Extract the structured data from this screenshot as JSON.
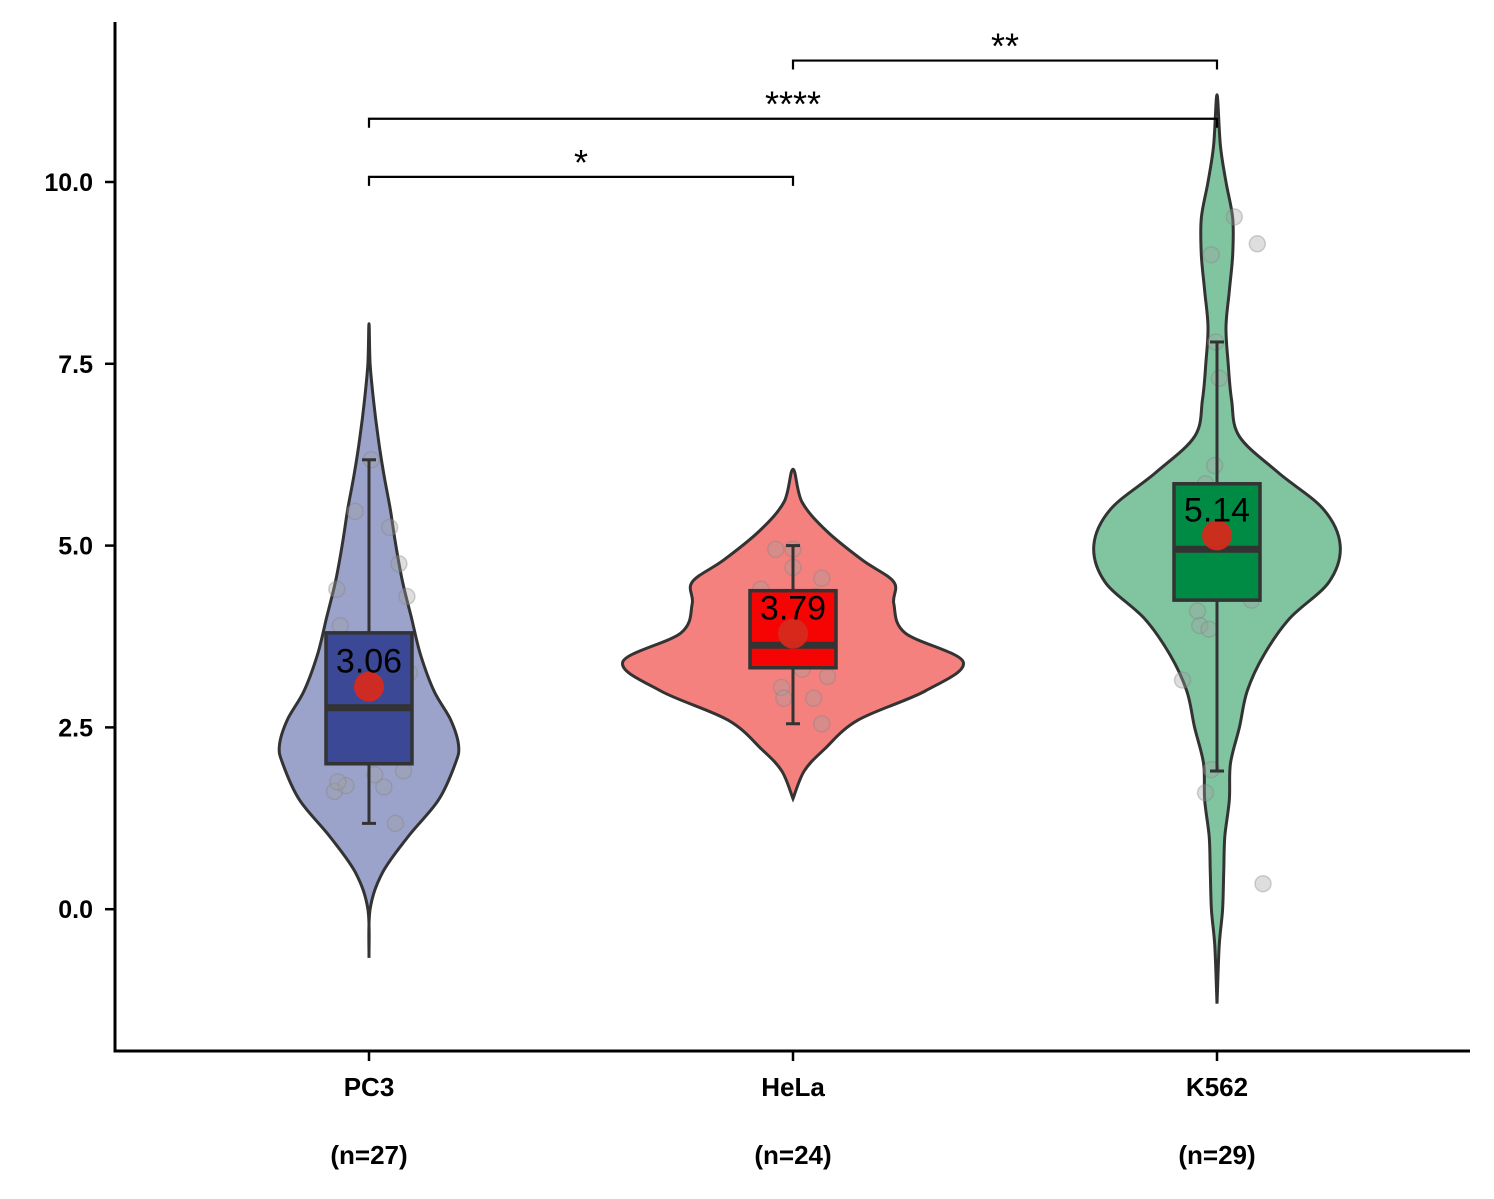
{
  "chart_data": {
    "type": "violin",
    "ylim": [
      -1.95,
      12.2
    ],
    "yticks": [
      "0.0",
      "2.5",
      "5.0",
      "7.5",
      "10.0"
    ],
    "grid": false,
    "legend": "none",
    "groups": [
      {
        "category": "PC3",
        "n_label": "(n=27)",
        "fill": "#9ba3cb",
        "box_fill": "#3a4895",
        "box": {
          "q1": 2.0,
          "median": 2.77,
          "q3": 3.8,
          "whisker_low": 1.18,
          "whisker_high": 6.18
        },
        "mean": 3.06,
        "mean_label": "3.06",
        "range": [
          -0.67,
          8.05
        ],
        "density": [
          [
            -0.67,
            0.0
          ],
          [
            0.0,
            0.01
          ],
          [
            0.5,
            0.12
          ],
          [
            1.0,
            0.35
          ],
          [
            1.5,
            0.62
          ],
          [
            2.0,
            0.77
          ],
          [
            2.25,
            0.8
          ],
          [
            2.6,
            0.73
          ],
          [
            3.0,
            0.58
          ],
          [
            3.5,
            0.46
          ],
          [
            4.0,
            0.38
          ],
          [
            4.5,
            0.3
          ],
          [
            5.0,
            0.24
          ],
          [
            5.5,
            0.19
          ],
          [
            6.0,
            0.13
          ],
          [
            6.5,
            0.08
          ],
          [
            7.0,
            0.04
          ],
          [
            7.5,
            0.01
          ],
          [
            8.05,
            0.0
          ]
        ],
        "points": [
          [
            1.62,
            -0.3
          ],
          [
            1.7,
            -0.2
          ],
          [
            1.75,
            -0.27
          ],
          [
            1.68,
            0.13
          ],
          [
            1.85,
            0.05
          ],
          [
            1.9,
            0.3
          ],
          [
            1.18,
            0.23
          ],
          [
            4.4,
            -0.28
          ],
          [
            3.9,
            -0.25
          ],
          [
            5.47,
            -0.12
          ],
          [
            5.25,
            0.18
          ],
          [
            4.75,
            0.26
          ],
          [
            4.3,
            0.33
          ],
          [
            3.25,
            0.35
          ],
          [
            6.18,
            0.02
          ],
          [
            2.3,
            -0.05
          ],
          [
            2.6,
            0.1
          ]
        ]
      },
      {
        "category": "HeLa",
        "n_label": "(n=24)",
        "fill": "#f5817e",
        "box_fill": "#f60404",
        "box": {
          "q1": 3.32,
          "median": 3.63,
          "q3": 4.38,
          "whisker_low": 2.55,
          "whisker_high": 5.0
        },
        "mean": 3.79,
        "mean_label": "3.79",
        "range": [
          1.52,
          6.05
        ],
        "density": [
          [
            1.52,
            0.0
          ],
          [
            1.9,
            0.1
          ],
          [
            2.2,
            0.28
          ],
          [
            2.6,
            0.58
          ],
          [
            3.0,
            1.18
          ],
          [
            3.4,
            1.52
          ],
          [
            3.8,
            1.0
          ],
          [
            4.2,
            0.9
          ],
          [
            4.5,
            0.9
          ],
          [
            4.8,
            0.62
          ],
          [
            5.2,
            0.3
          ],
          [
            5.6,
            0.08
          ],
          [
            6.05,
            0.0
          ]
        ],
        "points": [
          [
            4.95,
            -0.15
          ],
          [
            4.95,
            0.0
          ],
          [
            4.7,
            0.0
          ],
          [
            4.55,
            0.25
          ],
          [
            4.4,
            -0.28
          ],
          [
            4.3,
            0.2
          ],
          [
            3.9,
            0.17
          ],
          [
            3.5,
            0.05
          ],
          [
            3.4,
            0.3
          ],
          [
            3.3,
            0.08
          ],
          [
            3.2,
            0.3
          ],
          [
            3.05,
            -0.1
          ],
          [
            2.9,
            -0.08
          ],
          [
            2.9,
            0.18
          ],
          [
            2.55,
            0.25
          ],
          [
            3.7,
            -0.12
          ]
        ]
      },
      {
        "category": "K562",
        "n_label": "(n=29)",
        "fill": "#80c5a0",
        "box_fill": "#008b45",
        "box": {
          "q1": 4.25,
          "median": 4.95,
          "q3": 5.85,
          "whisker_low": 1.9,
          "whisker_high": 7.8
        },
        "mean": 5.14,
        "mean_label": "5.14",
        "range": [
          -1.3,
          11.2
        ],
        "density": [
          [
            -1.3,
            0.0
          ],
          [
            -0.5,
            0.02
          ],
          [
            0.0,
            0.05
          ],
          [
            0.5,
            0.06
          ],
          [
            1.0,
            0.07
          ],
          [
            1.5,
            0.11
          ],
          [
            2.0,
            0.12
          ],
          [
            2.5,
            0.2
          ],
          [
            3.0,
            0.27
          ],
          [
            3.5,
            0.42
          ],
          [
            4.0,
            0.65
          ],
          [
            4.5,
            1.0
          ],
          [
            5.0,
            1.1
          ],
          [
            5.5,
            0.95
          ],
          [
            6.0,
            0.55
          ],
          [
            6.5,
            0.2
          ],
          [
            7.0,
            0.13
          ],
          [
            7.5,
            0.1
          ],
          [
            8.0,
            0.08
          ],
          [
            8.5,
            0.11
          ],
          [
            9.0,
            0.14
          ],
          [
            9.5,
            0.14
          ],
          [
            10.0,
            0.08
          ],
          [
            10.5,
            0.03
          ],
          [
            11.2,
            0.0
          ]
        ],
        "points": [
          [
            9.52,
            0.15
          ],
          [
            9.15,
            0.35
          ],
          [
            9.0,
            -0.05
          ],
          [
            7.8,
            -0.01
          ],
          [
            7.3,
            0.02
          ],
          [
            6.1,
            -0.02
          ],
          [
            5.85,
            -0.1
          ],
          [
            5.45,
            0.03
          ],
          [
            4.45,
            -0.2
          ],
          [
            4.25,
            0.3
          ],
          [
            4.1,
            -0.17
          ],
          [
            3.9,
            -0.15
          ],
          [
            3.85,
            -0.07
          ],
          [
            3.15,
            -0.3
          ],
          [
            1.92,
            -0.05
          ],
          [
            1.6,
            -0.1
          ],
          [
            0.35,
            0.4
          ]
        ]
      }
    ],
    "comparisons": [
      {
        "from": 0,
        "to": 1,
        "label": "*",
        "y": 10.07
      },
      {
        "from": 0,
        "to": 2,
        "label": "****",
        "y": 10.87
      },
      {
        "from": 1,
        "to": 2,
        "label": "**",
        "y": 11.67
      }
    ]
  }
}
